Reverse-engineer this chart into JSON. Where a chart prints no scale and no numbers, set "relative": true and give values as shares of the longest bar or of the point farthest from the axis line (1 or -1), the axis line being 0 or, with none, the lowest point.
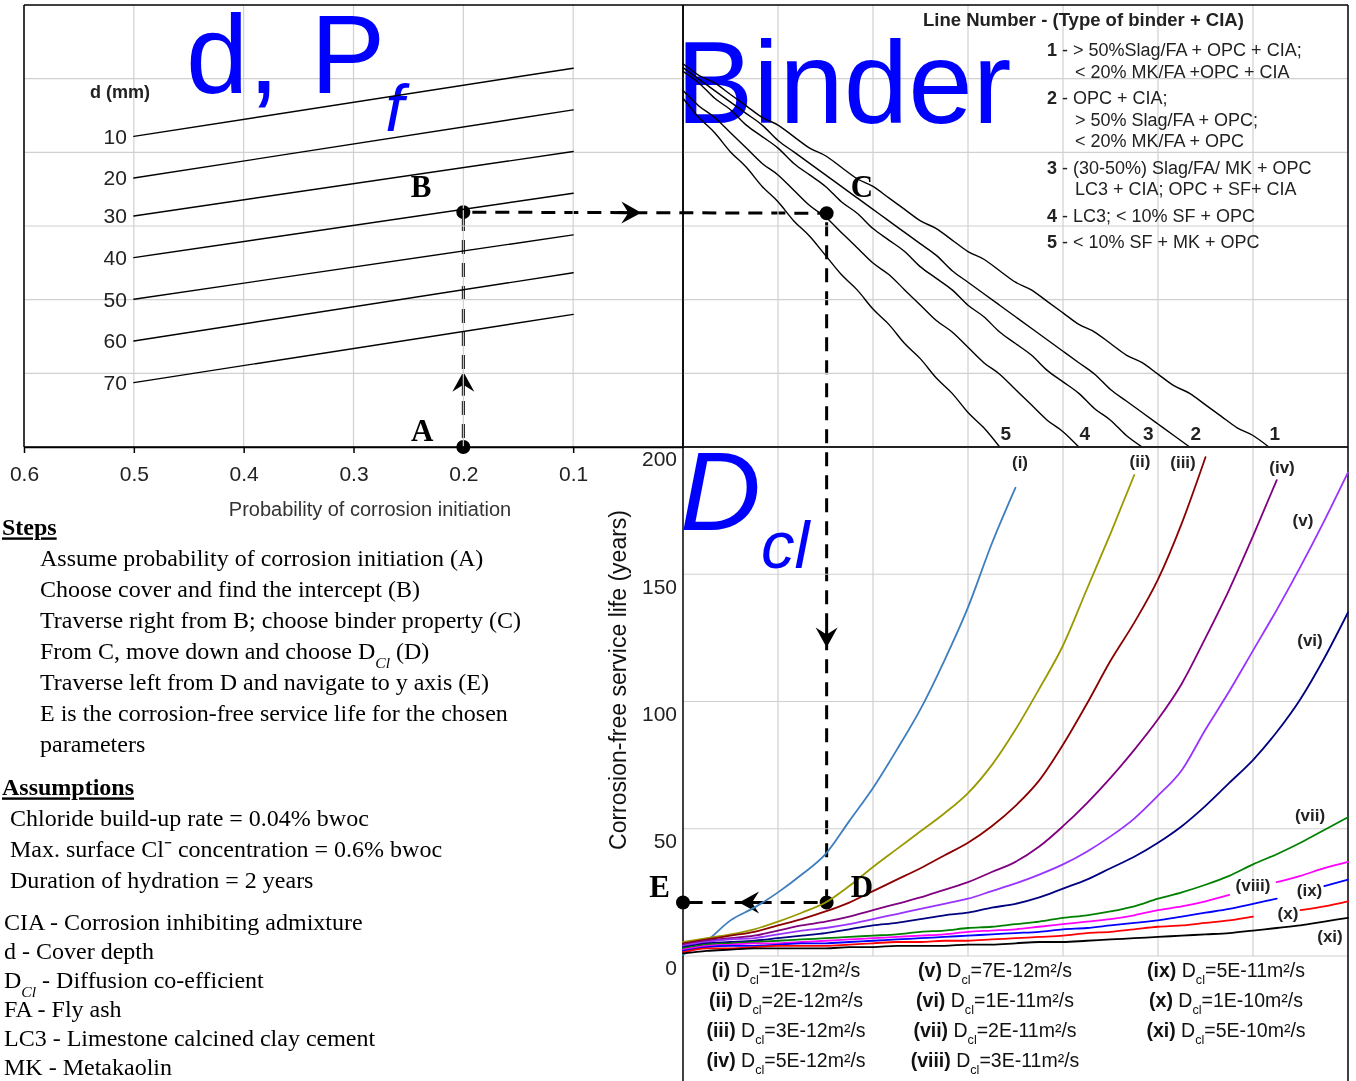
{
  "chart_data": [
    {
      "type": "line",
      "title": "d, P$_{f}$",
      "xlabel": "Probability of corrosion initiation",
      "legend_title": "d (mm)",
      "relative": true,
      "x": [
        0.5,
        0.1
      ],
      "xlim": [
        0.6,
        0
      ],
      "xticks": [
        0.6,
        0.5,
        0.4,
        0.3,
        0.2,
        0.1
      ],
      "grid": true,
      "series": [
        {
          "name": "10",
          "color": "#000000",
          "values": [
            0.82,
            1
          ]
        },
        {
          "name": "20",
          "color": "#000000",
          "values": [
            0.71,
            0.89
          ]
        },
        {
          "name": "30",
          "color": "#000000",
          "values": [
            0.61,
            0.78
          ]
        },
        {
          "name": "40",
          "color": "#000000",
          "values": [
            0.5,
            0.67
          ]
        },
        {
          "name": "50",
          "color": "#000000",
          "values": [
            0.39,
            0.56
          ]
        },
        {
          "name": "60",
          "color": "#000000",
          "values": [
            0.28,
            0.46
          ]
        },
        {
          "name": "70",
          "color": "#000000",
          "values": [
            0.17,
            0.35
          ]
        }
      ],
      "annotations": [
        {
          "text": "A",
          "x": 0.2,
          "y": 0
        },
        {
          "text": "B",
          "x": 0.2,
          "y": 0.62
        }
      ]
    },
    {
      "type": "line",
      "title": "Binder",
      "legend_title": "Line Number - (Type of binder + CIA)",
      "relative": true,
      "categories": [
        null,
        null,
        null,
        null,
        null,
        null,
        null,
        null,
        null,
        null,
        null,
        null,
        null,
        null,
        null,
        null,
        null,
        null,
        null,
        null,
        null,
        null,
        null,
        null,
        null,
        null,
        null,
        null,
        null,
        null,
        null,
        null,
        null,
        null,
        null,
        null,
        null,
        null,
        null,
        null,
        null,
        null,
        null
      ],
      "grid": true,
      "series": [
        {
          "name": "1",
          "color": "#000000",
          "values": [
            1,
            0.97,
            0.95,
            0.92,
            0.89,
            0.86,
            0.84,
            0.81,
            0.78,
            0.76,
            0.73,
            0.7,
            0.68,
            0.65,
            0.62,
            0.59,
            0.57,
            0.54,
            0.51,
            0.49,
            0.46,
            0.43,
            0.41,
            0.38,
            0.35,
            0.32,
            0.3,
            0.27,
            0.24,
            0.22,
            0.19,
            0.16,
            0.14,
            0.11,
            0.08,
            0.05,
            0.03,
            0,
            null,
            null,
            null,
            null,
            null
          ]
        },
        {
          "name": "2",
          "color": "#000000",
          "values": [
            0.99,
            0.96,
            0.93,
            0.9,
            0.87,
            0.84,
            0.8,
            0.77,
            0.74,
            0.71,
            0.68,
            0.65,
            0.62,
            0.59,
            0.56,
            0.53,
            0.5,
            0.46,
            0.43,
            0.4,
            0.37,
            0.34,
            0.31,
            0.28,
            0.25,
            0.22,
            0.19,
            0.15,
            0.12,
            0.09,
            0.06,
            0.03,
            0,
            null,
            null,
            null,
            null,
            null,
            null,
            null,
            null,
            null,
            null
          ]
        },
        {
          "name": "3",
          "color": "#000000",
          "values": [
            0.98,
            0.95,
            0.91,
            0.88,
            0.84,
            0.81,
            0.78,
            0.74,
            0.71,
            0.68,
            0.64,
            0.61,
            0.57,
            0.54,
            0.51,
            0.47,
            0.44,
            0.41,
            0.37,
            0.34,
            0.3,
            0.27,
            0.24,
            0.2,
            0.17,
            0.14,
            0.1,
            0.07,
            0.03,
            0,
            null,
            null,
            null,
            null,
            null,
            null,
            null,
            null,
            null,
            null,
            null,
            null,
            null
          ]
        },
        {
          "name": "4",
          "color": "#000000",
          "values": [
            0.93,
            0.89,
            0.86,
            0.82,
            0.78,
            0.74,
            0.71,
            0.67,
            0.63,
            0.6,
            0.56,
            0.52,
            0.48,
            0.45,
            0.41,
            0.37,
            0.33,
            0.3,
            0.26,
            0.22,
            0.19,
            0.15,
            0.11,
            0.07,
            0.04,
            0,
            null,
            null,
            null,
            null,
            null,
            null,
            null,
            null,
            null,
            null,
            null,
            null,
            null,
            null,
            null,
            null,
            null
          ]
        },
        {
          "name": "5",
          "color": "#000000",
          "values": [
            0.91,
            0.86,
            0.82,
            0.77,
            0.73,
            0.68,
            0.64,
            0.59,
            0.55,
            0.5,
            0.45,
            0.41,
            0.36,
            0.32,
            0.27,
            0.23,
            0.18,
            0.14,
            0.09,
            0.05,
            0,
            null,
            null,
            null,
            null,
            null,
            null,
            null,
            null,
            null,
            null,
            null,
            null,
            null,
            null,
            null,
            null,
            null,
            null,
            null,
            null,
            null,
            null
          ]
        }
      ],
      "annotations": [
        {
          "text": "C",
          "y": 0.61
        },
        "1 - > 50%Slag/FA + OPC + CIA;\n< 20% MK/FA +OPC + CIA",
        "2 - OPC + CIA;\n> 50% Slag/FA + OPC;\n< 20% MK/FA + OPC",
        "3 - (30-50%) Slag/FA/ MK + OPC\nLC3 + CIA; OPC + SF+ CIA",
        "4 - LC3; < 10% SF + OPC",
        "5 - < 10% SF + MK + OPC"
      ]
    },
    {
      "type": "line",
      "title": "D$_{cl}$",
      "ylabel": "Corrosion-free service life (years)",
      "categories": [
        null,
        null,
        null,
        null,
        null,
        null,
        null,
        null,
        null,
        null,
        null,
        null,
        null,
        null,
        null,
        null,
        null,
        null,
        null,
        null,
        null,
        null,
        null,
        null,
        null,
        null,
        null,
        null,
        null
      ],
      "ylim": [
        0,
        200
      ],
      "yticks": [
        0,
        50,
        100,
        150,
        200
      ],
      "grid": true,
      "series": [
        {
          "name": "(i)",
          "color": "#3d7ebf",
          "values": [
            0.5,
            6,
            14,
            19,
            25,
            32,
            40,
            53,
            66,
            81,
            97,
            116,
            137,
            162,
            184,
            null,
            null,
            null,
            null,
            null,
            null,
            null,
            null,
            null,
            null,
            null,
            null,
            null,
            null
          ]
        },
        {
          "name": "(ii)",
          "color": "#999900",
          "values": [
            5.5,
            7,
            8.5,
            10.5,
            13.5,
            17,
            21,
            27.5,
            35,
            42,
            49,
            56,
            64,
            75,
            89,
            105,
            122,
            144,
            166,
            189,
            null,
            null,
            null,
            null,
            null,
            null,
            null,
            null,
            null
          ]
        },
        {
          "name": "(iii)",
          "color": "#8b0000",
          "values": [
            5,
            6.5,
            8,
            9.5,
            12,
            14.5,
            17.5,
            21,
            25.5,
            30,
            34.5,
            39.5,
            44.5,
            51,
            59,
            69,
            83,
            99,
            116,
            131,
            148,
            170,
            196,
            null,
            null,
            null,
            null,
            null,
            null
          ]
        },
        {
          "name": "(iv)",
          "color": "#800080",
          "values": [
            4.5,
            6,
            7,
            8,
            10,
            12,
            13.5,
            15.5,
            18,
            20.5,
            23,
            26,
            29,
            33,
            37,
            43,
            51,
            60,
            70,
            81,
            93,
            107,
            125,
            144,
            165,
            187,
            null,
            null,
            null
          ]
        },
        {
          "name": "(v)",
          "color": "#9933ff",
          "values": [
            4,
            5.5,
            6.5,
            7,
            8.5,
            10,
            11,
            12.5,
            14.5,
            16.5,
            18.5,
            20.5,
            22.5,
            25.5,
            28.5,
            32,
            36,
            41,
            47,
            54,
            63,
            73,
            89,
            104,
            120,
            136,
            153,
            171,
            190
          ]
        },
        {
          "name": "(vi)",
          "color": "#000080",
          "values": [
            3.5,
            5,
            5.5,
            6,
            7,
            8,
            9,
            10.5,
            12,
            13,
            14.5,
            16,
            17,
            19,
            20.5,
            23,
            26.5,
            30,
            34.5,
            39,
            44.5,
            51,
            59,
            68,
            77,
            88,
            101,
            117,
            135
          ]
        },
        {
          "name": "(vii)",
          "color": "#008000",
          "values": [
            3,
            4.5,
            5,
            5.5,
            6,
            6.5,
            7,
            7.5,
            8,
            8.5,
            9.5,
            10,
            11,
            11.5,
            12.5,
            13.5,
            15,
            16,
            17.5,
            19.5,
            22.5,
            25,
            28,
            31.5,
            36,
            40,
            44.5,
            49.5,
            54.5
          ]
        },
        {
          "name": "(viii)",
          "color": "#ff00ff",
          "values": [
            2.5,
            4,
            4.5,
            5,
            5,
            5.5,
            6,
            6.5,
            7,
            7.5,
            8,
            8.5,
            9.5,
            10,
            10.5,
            11.5,
            12.5,
            13.5,
            14.5,
            16,
            18,
            19.5,
            21.5,
            24,
            null,
            29,
            31.5,
            34.5,
            37
          ]
        },
        {
          "name": "(ix)",
          "color": "#0000ff",
          "values": [
            2,
            3.5,
            4,
            4,
            4.5,
            5,
            5,
            5.5,
            6,
            6.5,
            7,
            7.5,
            8,
            8.5,
            9,
            9.5,
            10.5,
            11,
            12,
            13,
            14,
            15.5,
            17,
            18.5,
            20.5,
            22.5,
            null,
            27.5,
            30
          ]
        },
        {
          "name": "(x)",
          "color": "#ff0000",
          "values": [
            1.5,
            3,
            3,
            3.5,
            4,
            4,
            4,
            4.5,
            5,
            5.5,
            5.5,
            6,
            6,
            6.5,
            7,
            7.5,
            8,
            9,
            9.5,
            10.5,
            11.5,
            12,
            13,
            14,
            15.5,
            null,
            18,
            19.5,
            21.5
          ]
        },
        {
          "name": "(xi)",
          "color": "#000000",
          "values": [
            1,
            2,
            2.5,
            3,
            3,
            3,
            3,
            3.5,
            3.5,
            4,
            4,
            4,
            4.5,
            4.5,
            5,
            5.5,
            5.5,
            6,
            6.5,
            7,
            7.5,
            8,
            8.5,
            9,
            10,
            11,
            12,
            13.5,
            15
          ]
        },
        {
          "type": "scatter",
          "color": "#000000",
          "values": [
            21,
            null,
            null,
            null,
            null,
            null,
            null,
            null,
            null,
            null,
            null,
            null,
            null,
            null,
            null,
            null,
            null,
            null,
            null,
            null,
            null,
            null,
            null,
            null,
            null,
            null,
            null,
            null,
            null
          ]
        }
      ],
      "annotations": [
        {
          "text": "D",
          "y": 21
        },
        "E",
        "(i) D$_{cl}$=1E-12m²/s",
        "(ii) D$_{cl}$=2E-12m²/s",
        "(iii) D$_{cl}$=3E-12m²/s",
        "(iv) D$_{cl}$=5E-12m²/s",
        "(v) D$_{cl}$=7E-12m²/s",
        "(vi) D$_{cl}$=1E-11m²/s",
        "(vii) D$_{cl}$=2E-11m²/s",
        "(viii) D$_{cl}$=3E-11m²/s",
        "(ix) D$_{cl}$=5E-11m²/s",
        "(x) D$_{cl}$=1E-10m²/s",
        "(xi) D$_{cl}$=5E-10m²/s"
      ]
    },
    {
      "type": "other",
      "annotations": [
        "Steps",
        "Assume probability of corrosion initiation (A)",
        "Choose cover and find the intercept (B)",
        "Traverse right from B; choose binder property (C)",
        "From C, move down and choose D$_{Cl}$ (D)",
        "Traverse left from D and navigate to y axis (E)",
        "E is the corrosion-free service life for the chosen parameters",
        "Assumptions",
        "Chloride build-up rate = 0.04% bwoc",
        "Max. surface Cl⁻ concentration = 0.6% bwoc",
        "Duration of hydration = 2 years",
        "CIA - Corrosion inhibiting admixture",
        "d - Cover depth",
        "D$_{Cl}$ - Diffusion co-efficient",
        "FA - Fly ash",
        "LC3 - Limestone calcined clay cement",
        "MK - Metakaolin"
      ]
    }
  ]
}
